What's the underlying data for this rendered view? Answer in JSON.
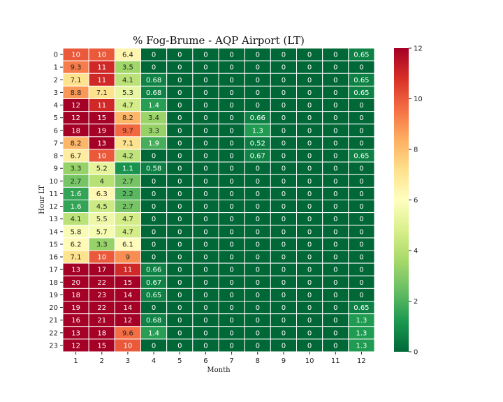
{
  "chart_data": {
    "type": "heatmap",
    "title": "% Fog-Brume - AQP Airport (LT)",
    "xlabel": "Month",
    "ylabel": "Hour LT",
    "x_categories": [
      "1",
      "2",
      "3",
      "4",
      "5",
      "6",
      "7",
      "8",
      "9",
      "10",
      "11",
      "12"
    ],
    "y_categories": [
      "0",
      "1",
      "2",
      "3",
      "4",
      "5",
      "6",
      "7",
      "8",
      "9",
      "10",
      "11",
      "12",
      "13",
      "14",
      "15",
      "16",
      "17",
      "18",
      "19",
      "20",
      "21",
      "22",
      "23"
    ],
    "values": [
      [
        10,
        10,
        6.4,
        0,
        0,
        0,
        0,
        0,
        0,
        0,
        0,
        0.65
      ],
      [
        9.3,
        11,
        3.5,
        0,
        0,
        0,
        0,
        0,
        0,
        0,
        0,
        0
      ],
      [
        7.1,
        11,
        4.1,
        0.68,
        0,
        0,
        0,
        0,
        0,
        0,
        0,
        0.65
      ],
      [
        8.8,
        7.1,
        5.3,
        0.68,
        0,
        0,
        0,
        0,
        0,
        0,
        0,
        0.65
      ],
      [
        12,
        11,
        4.7,
        1.4,
        0,
        0,
        0,
        0,
        0,
        0,
        0,
        0
      ],
      [
        12,
        15,
        8.2,
        3.4,
        0,
        0,
        0,
        0.66,
        0,
        0,
        0,
        0
      ],
      [
        18,
        19,
        9.7,
        3.3,
        0,
        0,
        0,
        1.3,
        0,
        0,
        0,
        0
      ],
      [
        8.2,
        13,
        7.1,
        1.9,
        0,
        0,
        0,
        0.52,
        0,
        0,
        0,
        0
      ],
      [
        6.7,
        10,
        4.2,
        0,
        0,
        0,
        0,
        0.67,
        0,
        0,
        0,
        0.65
      ],
      [
        3.3,
        5.2,
        1.1,
        0.58,
        0,
        0,
        0,
        0,
        0,
        0,
        0,
        0
      ],
      [
        2.7,
        4,
        2.7,
        0,
        0,
        0,
        0,
        0,
        0,
        0,
        0,
        0
      ],
      [
        1.6,
        6.3,
        2.2,
        0,
        0,
        0,
        0,
        0,
        0,
        0,
        0,
        0
      ],
      [
        1.6,
        4.5,
        2.7,
        0,
        0,
        0,
        0,
        0,
        0,
        0,
        0,
        0
      ],
      [
        4.1,
        5.5,
        4.7,
        0,
        0,
        0,
        0,
        0,
        0,
        0,
        0,
        0
      ],
      [
        5.8,
        5.7,
        4.7,
        0,
        0,
        0,
        0,
        0,
        0,
        0,
        0,
        0
      ],
      [
        6.2,
        3.3,
        6.1,
        0,
        0,
        0,
        0,
        0,
        0,
        0,
        0,
        0
      ],
      [
        7.1,
        10,
        9,
        0,
        0,
        0,
        0,
        0,
        0,
        0,
        0,
        0
      ],
      [
        13,
        17,
        11,
        0.66,
        0,
        0,
        0,
        0,
        0,
        0,
        0,
        0
      ],
      [
        20,
        22,
        15,
        0.67,
        0,
        0,
        0,
        0,
        0,
        0,
        0,
        0
      ],
      [
        18,
        23,
        14,
        0.65,
        0,
        0,
        0,
        0,
        0,
        0,
        0,
        0
      ],
      [
        19,
        22,
        14,
        0,
        0,
        0,
        0,
        0,
        0,
        0,
        0,
        0.65
      ],
      [
        16,
        21,
        12,
        0.68,
        0,
        0,
        0,
        0,
        0,
        0,
        0,
        1.3
      ],
      [
        13,
        18,
        9.6,
        1.4,
        0,
        0,
        0,
        0,
        0,
        0,
        0,
        1.3
      ],
      [
        12,
        15,
        10,
        0,
        0,
        0,
        0,
        0,
        0,
        0,
        0,
        1.3
      ]
    ],
    "color_scale": {
      "name": "RdYlGn_r",
      "vmin": 0,
      "vmax": 12,
      "ticks": [
        0,
        2,
        4,
        6,
        8,
        10,
        12
      ]
    },
    "cell_border_color": "#ffffff"
  }
}
